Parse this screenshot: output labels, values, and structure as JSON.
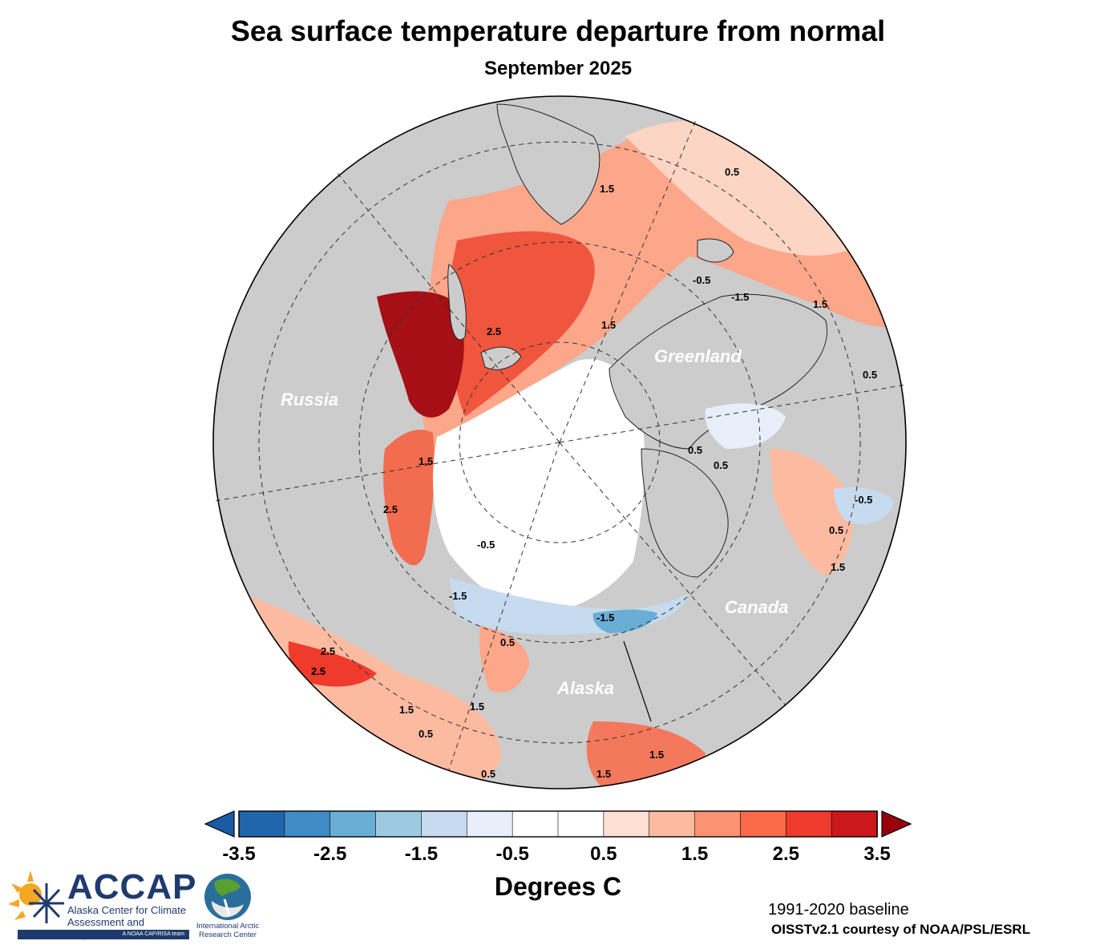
{
  "title": "Sea surface temperature departure from normal",
  "subtitle": "September 2025",
  "regions": {
    "russia": "Russia",
    "greenland": "Greenland",
    "canada": "Canada",
    "alaska": "Alaska"
  },
  "contour_labels": [
    "0.5",
    "1.5",
    "2.5",
    "-0.5",
    "-1.5",
    "1.5",
    "2.5",
    "1.5",
    "0.5",
    "-0.5",
    "-1.5",
    "1.5",
    "0.5",
    "0.5",
    "1.5",
    "1.5",
    "2.5",
    "2.5",
    "1.5",
    "0.5",
    "1.5",
    "0.5",
    "-0.5",
    "-1.5",
    "0.5",
    "1.5",
    "0.5"
  ],
  "colorbar": {
    "ticks": [
      "-3.5",
      "-2.5",
      "-1.5",
      "-0.5",
      "0.5",
      "1.5",
      "2.5",
      "3.5"
    ],
    "colors": [
      "#2166ac",
      "#3f8bc6",
      "#6aaed6",
      "#9ecae1",
      "#c6dbef",
      "#e8effb",
      "#ffffff",
      "#ffffff",
      "#fde0d2",
      "#fcbba1",
      "#fc9272",
      "#fb6a4a",
      "#ef3b2c",
      "#cb181d"
    ],
    "under_color": "#1d5aa6",
    "over_color": "#99000d",
    "label": "Degrees C"
  },
  "colors": {
    "land": "#cccccc",
    "warm_strong": "#a50f15",
    "warm": "#ef3b2c",
    "warm_mid": "#fc9272",
    "warm_light": "#fde0d2",
    "cold": "#c6dbef",
    "cold_strong": "#3f8bc6"
  },
  "credits": {
    "baseline": "1991-2020 baseline",
    "source": "OISSTv2.1 courtesy of NOAA/PSL/ESRL"
  },
  "logos": {
    "accap_name": "ACCAP",
    "accap_line1": "Alaska Center for Climate",
    "accap_line2": "Assessment and Preparedness",
    "accap_tag": "A NOAA CAP/RISA team",
    "iarc_line1": "International Arctic",
    "iarc_line2": "Research Center"
  }
}
